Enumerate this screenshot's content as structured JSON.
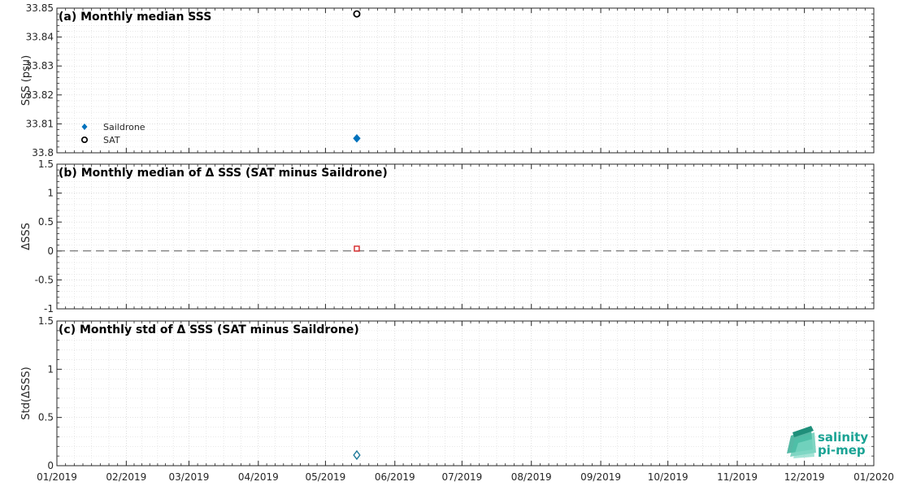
{
  "chart_data": [
    {
      "type": "scatter",
      "title": "(a) Monthly median SSS",
      "ylabel": "SSS (psu)",
      "ylim": [
        33.8,
        33.85
      ],
      "yticks": [
        "33.8",
        "33.81",
        "33.82",
        "33.83",
        "33.84",
        "33.85"
      ],
      "grid": true,
      "legend": "bottom-left",
      "series": [
        {
          "name": "Saildrone",
          "marker": "diamond-filled",
          "color": "#0072BD",
          "x": [
            "2019-05-15"
          ],
          "y": [
            33.805
          ]
        },
        {
          "name": "SAT",
          "marker": "circle-open",
          "color": "#000000",
          "x": [
            "2019-05-15"
          ],
          "y": [
            33.848
          ]
        }
      ]
    },
    {
      "type": "scatter",
      "title": "(b) Monthly median of Δ SSS (SAT minus Saildrone)",
      "ylabel": "ΔSSS",
      "ylim": [
        -1,
        1.5
      ],
      "yticks": [
        "-1",
        "-0.5",
        "0",
        "0.5",
        "1",
        "1.5"
      ],
      "grid": true,
      "zero_line": "dashed",
      "series": [
        {
          "marker": "square-open",
          "color": "#D62728",
          "x": [
            "2019-05-15"
          ],
          "y": [
            0.04
          ]
        }
      ]
    },
    {
      "type": "scatter",
      "title": "(c) Monthly std of Δ SSS (SAT minus Saildrone)",
      "ylabel": "Std(ΔSSS)",
      "ylim": [
        0,
        1.5
      ],
      "yticks": [
        "0",
        "0.5",
        "1",
        "1.5"
      ],
      "grid": true,
      "series": [
        {
          "marker": "diamond-open",
          "color": "#1F7A9A",
          "x": [
            "2019-05-15"
          ],
          "y": [
            0.11
          ]
        }
      ]
    }
  ],
  "x_axis": {
    "range": [
      "2019-01-01",
      "2020-01-01"
    ],
    "ticks": [
      "01/2019",
      "02/2019",
      "03/2019",
      "04/2019",
      "05/2019",
      "06/2019",
      "07/2019",
      "08/2019",
      "09/2019",
      "10/2019",
      "11/2019",
      "12/2019",
      "01/2020"
    ]
  },
  "logo": {
    "line1": "salinity",
    "line2": "pi-mep",
    "color": "#1aa394"
  }
}
